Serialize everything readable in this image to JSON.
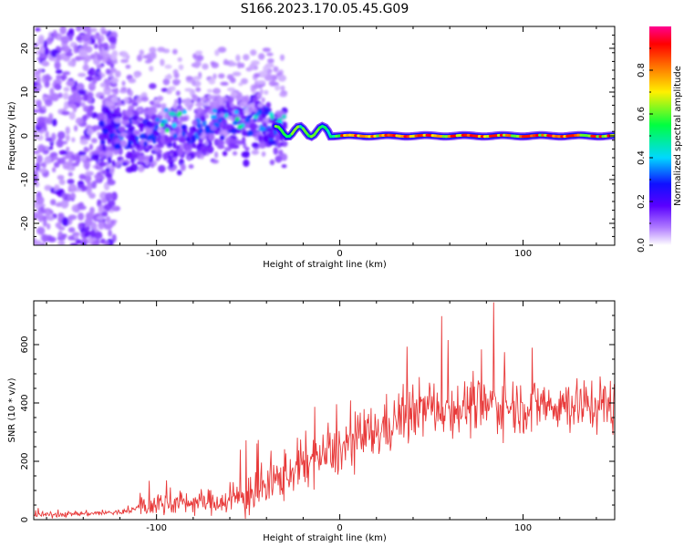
{
  "title": "S166.2023.170.05.45.G09",
  "chart_data": [
    {
      "type": "heatmap",
      "name": "spectrogram",
      "xlabel": "Height of straight line (km)",
      "ylabel": "Frequency (Hz)",
      "xlim": [
        -167,
        150
      ],
      "ylim": [
        -25,
        25
      ],
      "xticks": [
        -100,
        0,
        100
      ],
      "yticks": [
        -20,
        -10,
        0,
        10,
        20
      ],
      "colorbar": {
        "label": "Normalized spectral amplitude",
        "range": [
          0,
          1
        ],
        "ticks": [
          0.0,
          0.2,
          0.4,
          0.6,
          0.8
        ]
      },
      "description_values": {
        "noise_region_x": [
          -167,
          -125
        ],
        "dispersed_energy_x": [
          -125,
          -30
        ],
        "narrow_line_x": [
          -30,
          150
        ],
        "line_frequency_hz": 0,
        "peak_amplitude": 1.0
      }
    },
    {
      "type": "line",
      "name": "snr",
      "series": [
        {
          "name": "SNR",
          "color": "#e83a3a"
        }
      ],
      "xlabel": "Height of straight line (km)",
      "ylabel": "SNR (10 * v/v)",
      "xlim": [
        -167,
        150
      ],
      "ylim": [
        0,
        750
      ],
      "xticks": [
        -100,
        0,
        100
      ],
      "yticks": [
        0,
        200,
        400,
        600
      ],
      "trend_x": [
        -167,
        -120,
        -100,
        -60,
        -40,
        -20,
        0,
        20,
        40,
        80,
        120,
        150
      ],
      "trend_y": [
        15,
        25,
        55,
        65,
        110,
        190,
        240,
        300,
        380,
        390,
        395,
        395
      ],
      "spike_max": {
        "x": 84,
        "y": 745
      }
    }
  ]
}
